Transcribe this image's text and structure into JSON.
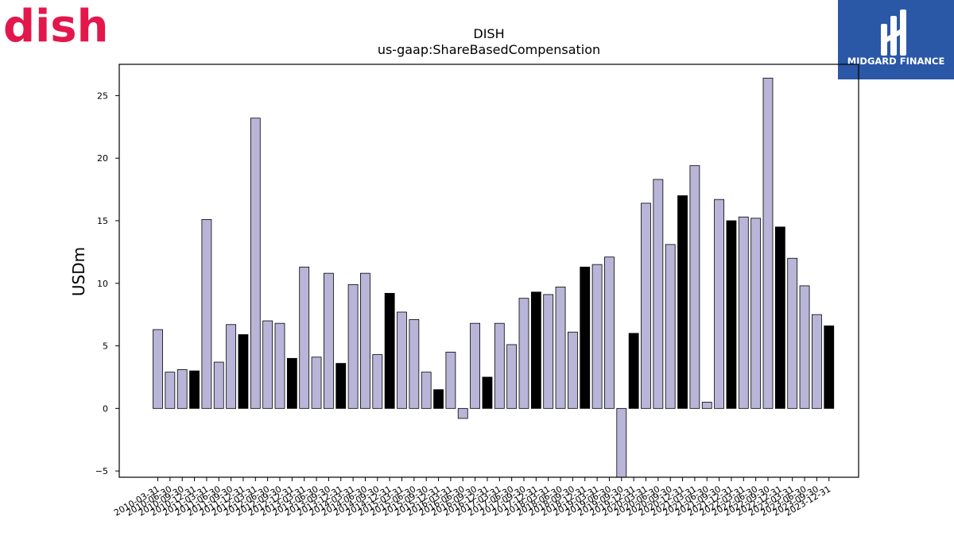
{
  "brand": {
    "left_logo_text": "dish",
    "left_logo_color": "#e3174b",
    "right_logo_text": "MIDGARD FINANCE",
    "right_logo_bg": "#2a57a6"
  },
  "chart_data": {
    "type": "bar",
    "title": "DISH",
    "subtitle": "us-gaap:ShareBasedCompensation",
    "xlabel": "",
    "ylabel": "USDm",
    "ylim": [
      -5.5,
      27.5
    ],
    "yticks": [
      -5,
      0,
      5,
      10,
      15,
      20,
      25
    ],
    "ytick_labels": [
      "−5",
      "0",
      "5",
      "10",
      "15",
      "20",
      "25"
    ],
    "grid": false,
    "colors": {
      "quarter": "#b9b5d8",
      "year_end": "#000000",
      "edge": "#000000"
    },
    "categories": [
      "2010-03-31",
      "2010-06-30",
      "2010-09-30",
      "2010-12-31",
      "2011-03-31",
      "2011-06-30",
      "2011-09-30",
      "2011-12-31",
      "2012-03-31",
      "2012-06-30",
      "2012-09-30",
      "2012-12-31",
      "2013-03-31",
      "2013-06-30",
      "2013-09-30",
      "2013-12-31",
      "2014-03-31",
      "2014-06-30",
      "2014-09-30",
      "2014-12-31",
      "2015-03-31",
      "2015-06-30",
      "2015-09-30",
      "2015-12-31",
      "2016-03-31",
      "2016-06-30",
      "2016-09-30",
      "2016-12-31",
      "2017-03-31",
      "2017-06-30",
      "2017-09-30",
      "2017-12-31",
      "2018-03-31",
      "2018-06-30",
      "2018-09-30",
      "2018-12-31",
      "2019-03-31",
      "2019-06-30",
      "2019-09-30",
      "2019-12-31",
      "2020-03-31",
      "2020-06-30",
      "2020-09-30",
      "2020-12-31",
      "2021-03-31",
      "2021-06-30",
      "2021-09-30",
      "2021-12-31",
      "2022-03-31",
      "2022-06-30",
      "2022-09-30",
      "2022-12-31",
      "2023-03-31",
      "2023-06-30",
      "2023-09-30",
      "2023-12-31"
    ],
    "values": [
      6.3,
      2.9,
      3.1,
      3.0,
      15.1,
      3.7,
      6.7,
      5.9,
      23.2,
      7.0,
      6.8,
      4.0,
      11.3,
      4.1,
      10.8,
      3.6,
      9.9,
      10.8,
      4.3,
      9.2,
      7.7,
      7.1,
      2.9,
      1.5,
      4.5,
      -0.8,
      6.8,
      2.5,
      6.8,
      5.1,
      8.8,
      9.3,
      9.1,
      9.7,
      6.1,
      11.3,
      11.5,
      12.1,
      -5.5,
      6.0,
      16.4,
      18.3,
      13.1,
      17.0,
      19.4,
      0.5,
      16.7,
      15.0,
      15.3,
      15.2,
      26.4,
      14.5,
      12.0,
      9.8,
      7.5,
      6.6
    ],
    "year_end_flags": [
      false,
      false,
      false,
      true,
      false,
      false,
      false,
      true,
      false,
      false,
      false,
      true,
      false,
      false,
      false,
      true,
      false,
      false,
      false,
      true,
      false,
      false,
      false,
      true,
      false,
      false,
      false,
      true,
      false,
      false,
      false,
      true,
      false,
      false,
      false,
      true,
      false,
      false,
      false,
      true,
      false,
      false,
      false,
      true,
      false,
      false,
      false,
      true,
      false,
      false,
      false,
      true,
      false,
      false,
      false,
      true
    ]
  }
}
